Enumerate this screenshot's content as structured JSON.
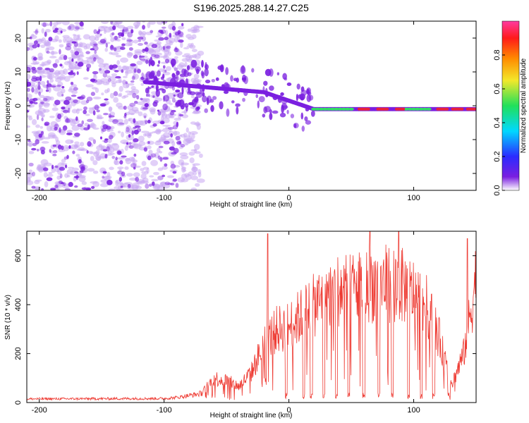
{
  "title": "S196.2025.288.14.27.C25",
  "colors": {
    "snr_line": "#ee3b33",
    "spec_blob": "#7a1fe0",
    "spec_faint": "#c9a8f3",
    "spec_ridge_hot": "#e8243a",
    "spec_ridge_mid": "#33dd66"
  },
  "chart_data": [
    {
      "type": "heatmap",
      "name": "spectrogram",
      "xlabel": "Height of straight line (km)",
      "ylabel": "Frequency (Hz)",
      "xlim": [
        -210,
        150
      ],
      "ylim": [
        -25,
        25
      ],
      "xticks": [
        -200,
        -100,
        0,
        100
      ],
      "yticks": [
        20,
        10,
        0,
        -10,
        -20
      ],
      "xtick_labels": [
        "-200",
        "-100",
        "0",
        "100"
      ],
      "ytick_labels": [
        "20",
        "10",
        "0",
        "-10",
        "-20"
      ],
      "noise_region_km": [
        -210,
        -80
      ],
      "track": {
        "start_km": -115,
        "start_freq_hz": 7,
        "mid_km": -20,
        "mid_freq_hz": 4,
        "end_km": 20,
        "end_freq_hz": -1,
        "flat_freq_hz": -1,
        "hot_segments_km": [
          [
            55,
            65
          ],
          [
            70,
            80
          ],
          [
            85,
            93
          ],
          [
            118,
            128
          ],
          [
            130,
            140
          ],
          [
            142,
            150
          ]
        ],
        "mid_segments_km": [
          [
            20,
            50
          ],
          [
            94,
            112
          ]
        ]
      },
      "colorbar": {
        "label": "Normalized spectral amplitude",
        "range": [
          0,
          1
        ],
        "ticks": [
          0.0,
          0.2,
          0.4,
          0.6,
          0.8
        ],
        "tick_labels": [
          "0.0",
          "0.2",
          "0.4",
          "0.6",
          "0.8"
        ],
        "colormap": [
          "#ffffff",
          "#7a1fe0",
          "#2b2bff",
          "#00d8ff",
          "#21e05a",
          "#f3e82a",
          "#ff8a00",
          "#ff1a1a",
          "#ff3aa0"
        ]
      }
    },
    {
      "type": "line",
      "name": "snr",
      "xlabel": "Height of straight line (km)",
      "ylabel": "SNR (10 * v/v)",
      "xlim": [
        -210,
        150
      ],
      "ylim": [
        0,
        700
      ],
      "xticks": [
        -200,
        -100,
        0,
        100
      ],
      "yticks": [
        0,
        200,
        400,
        600
      ],
      "xtick_labels": [
        "-200",
        "-100",
        "0",
        "100"
      ],
      "ytick_labels": [
        "0",
        "200",
        "400",
        "600"
      ],
      "envelope": {
        "x": [
          -210,
          -100,
          -90,
          -80,
          -70,
          -60,
          -50,
          -40,
          -30,
          -20,
          -10,
          0,
          10,
          20,
          30,
          40,
          50,
          60,
          70,
          80,
          90,
          100,
          110,
          120,
          130,
          140,
          150
        ],
        "y": [
          18,
          20,
          25,
          35,
          45,
          120,
          110,
          80,
          150,
          290,
          360,
          380,
          430,
          480,
          530,
          560,
          560,
          580,
          590,
          590,
          580,
          540,
          480,
          330,
          80,
          240,
          620
        ]
      },
      "spikes": [
        {
          "x": -17,
          "y": 690
        },
        {
          "x": 65,
          "y": 700
        },
        {
          "x": 88,
          "y": 700
        },
        {
          "x": 143,
          "y": 670
        }
      ],
      "dropouts_km": [
        -2,
        12,
        18,
        28,
        38,
        48,
        60,
        72,
        83,
        96,
        106,
        116,
        128
      ]
    }
  ]
}
